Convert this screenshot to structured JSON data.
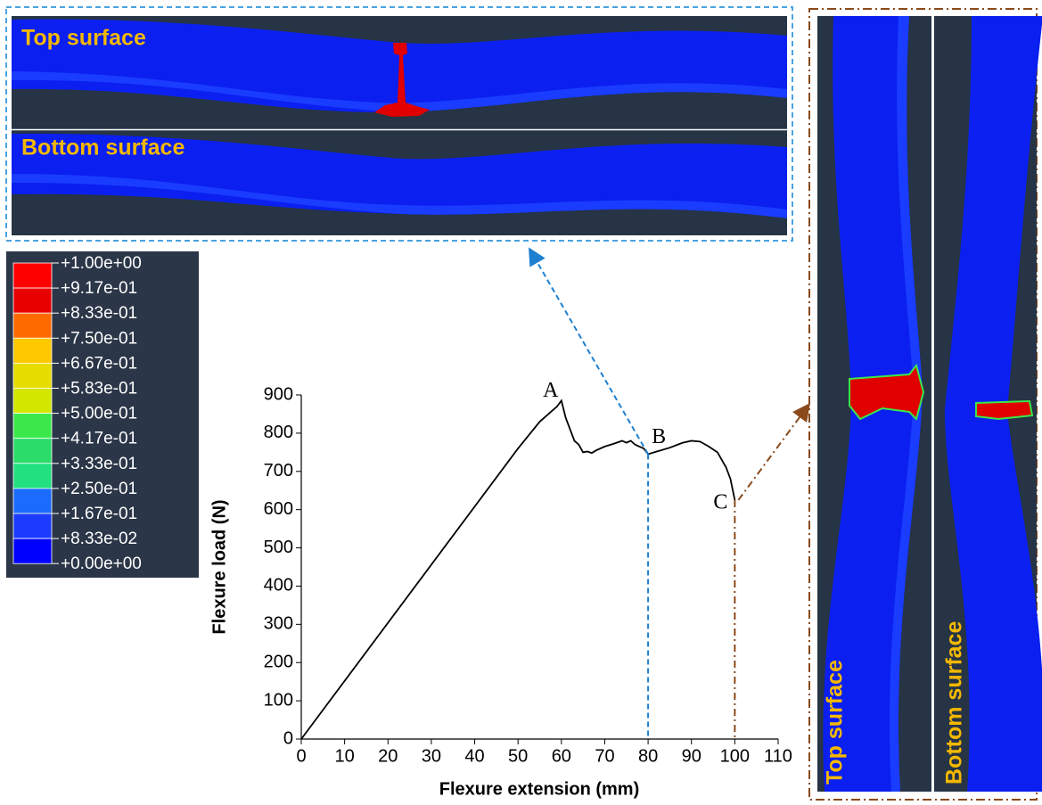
{
  "chart_data": {
    "type": "line",
    "xlabel": "Flexure extension (mm)",
    "ylabel": "Flexure load (N)",
    "x": [
      0,
      50,
      55,
      59,
      60,
      61,
      62,
      63,
      64,
      65,
      66,
      67,
      68,
      70,
      72,
      74,
      75,
      76,
      77,
      78,
      79,
      80,
      82,
      85,
      88,
      90,
      92,
      94,
      96,
      98,
      99,
      100
    ],
    "series": [
      {
        "color": "#000000",
        "values": [
          0,
          760,
          830,
          870,
          885,
          840,
          810,
          780,
          770,
          750,
          752,
          748,
          755,
          765,
          772,
          780,
          775,
          780,
          770,
          765,
          760,
          745,
          752,
          762,
          775,
          780,
          778,
          765,
          750,
          710,
          680,
          625
        ]
      }
    ],
    "xlim": [
      0,
      110
    ],
    "ylim": [
      0,
      900
    ],
    "xticks": [
      0,
      10,
      20,
      30,
      40,
      50,
      60,
      70,
      80,
      90,
      100,
      110
    ],
    "yticks": [
      0,
      100,
      200,
      300,
      400,
      500,
      600,
      700,
      800,
      900
    ],
    "annotations": [
      {
        "text": "A",
        "x": 60,
        "y": 885
      },
      {
        "text": "B",
        "x": 80,
        "y": 745
      },
      {
        "text": "C",
        "x": 100,
        "y": 625
      }
    ]
  },
  "contour_legend": {
    "labels": [
      "+1.00e+00",
      "+9.17e-01",
      "+8.33e-01",
      "+7.50e-01",
      "+6.67e-01",
      "+5.83e-01",
      "+5.00e-01",
      "+4.17e-01",
      "+3.33e-01",
      "+2.50e-01",
      "+1.67e-01",
      "+8.33e-02",
      "+0.00e+00"
    ],
    "colors": [
      "#ff0000",
      "#e80000",
      "#ff6a00",
      "#ffc800",
      "#e6dc00",
      "#d2e600",
      "#3be84a",
      "#2bdc6a",
      "#22e080",
      "#1a6cff",
      "#1b3cff",
      "#0000ff"
    ]
  },
  "panels": {
    "horizontal": {
      "top_label": "Top surface",
      "bottom_label": "Bottom surface"
    },
    "vertical": {
      "top_label": "Top surface",
      "bottom_label": "Bottom surface"
    }
  }
}
